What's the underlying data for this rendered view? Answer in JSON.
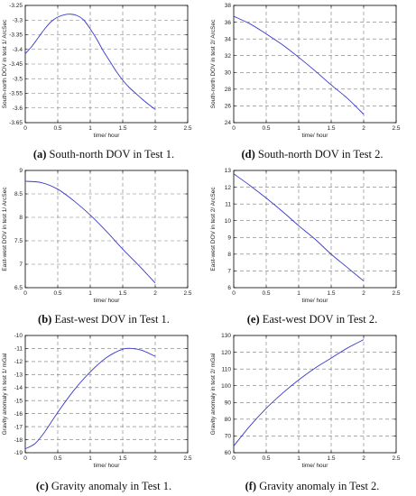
{
  "chart_data": [
    {
      "id": "a",
      "type": "line",
      "caption_tag": "(a)",
      "caption_text": " South-north DOV in Test 1.",
      "xlabel": "time/ hour",
      "ylabel": "South-north DOV in test 1/ ArcSec",
      "xlim": [
        0,
        2.5
      ],
      "ylim": [
        -3.65,
        -3.25
      ],
      "xticks": [
        0,
        0.5,
        1,
        1.5,
        2,
        2.5
      ],
      "xticklabels": [
        "0",
        "0.5",
        "1",
        "1.5",
        "2",
        "2.5"
      ],
      "yticks": [
        -3.65,
        -3.6,
        -3.55,
        -3.5,
        -3.45,
        -3.4,
        -3.35,
        -3.3,
        -3.25
      ],
      "yticklabels": [
        "-3.65",
        "-3.6",
        "-3.55",
        "-3.5",
        "-3.45",
        "-3.4",
        "-3.35",
        "-3.3",
        "-3.25"
      ],
      "grid": true,
      "color": "#3a3acc",
      "x": [
        0,
        0.1,
        0.2,
        0.3,
        0.4,
        0.5,
        0.6,
        0.7,
        0.8,
        0.9,
        1.0,
        1.1,
        1.2,
        1.3,
        1.4,
        1.5,
        1.6,
        1.7,
        1.8,
        1.9,
        2.0
      ],
      "y": [
        -3.415,
        -3.39,
        -3.36,
        -3.33,
        -3.305,
        -3.29,
        -3.282,
        -3.28,
        -3.285,
        -3.3,
        -3.33,
        -3.365,
        -3.405,
        -3.44,
        -3.475,
        -3.505,
        -3.53,
        -3.55,
        -3.57,
        -3.588,
        -3.605
      ]
    },
    {
      "id": "d",
      "type": "line",
      "caption_tag": "(d)",
      "caption_text": " South-north DOV in Test 2.",
      "xlabel": "time/ hour",
      "ylabel": "South-north DOV in test 2/ ArcSec",
      "xlim": [
        0,
        2.5
      ],
      "ylim": [
        24,
        38
      ],
      "xticks": [
        0,
        0.5,
        1,
        1.5,
        2,
        2.5
      ],
      "xticklabels": [
        "0",
        "0.5",
        "1",
        "1.5",
        "2",
        "2.5"
      ],
      "yticks": [
        24,
        26,
        28,
        30,
        32,
        34,
        36,
        38
      ],
      "yticklabels": [
        "24",
        "26",
        "28",
        "30",
        "32",
        "34",
        "36",
        "38"
      ],
      "grid": true,
      "color": "#3a3acc",
      "x": [
        0,
        0.25,
        0.5,
        0.75,
        1.0,
        1.25,
        1.5,
        1.75,
        2.0
      ],
      "y": [
        36.7,
        35.8,
        34.6,
        33.3,
        31.8,
        30.2,
        28.5,
        26.9,
        25.0
      ]
    },
    {
      "id": "b",
      "type": "line",
      "caption_tag": "(b)",
      "caption_text": " East-west DOV in Test 1.",
      "xlabel": "time/ hour",
      "ylabel": "East-west DOV in test 1/ ArcSec",
      "xlim": [
        0,
        2.5
      ],
      "ylim": [
        6.5,
        9
      ],
      "xticks": [
        0,
        0.5,
        1,
        1.5,
        2,
        2.5
      ],
      "xticklabels": [
        "0",
        "0.5",
        "1",
        "1.5",
        "2",
        "2.5"
      ],
      "yticks": [
        6.5,
        7,
        7.5,
        8,
        8.5,
        9
      ],
      "yticklabels": [
        "6.5",
        "7",
        "7.5",
        "8",
        "8.5",
        "9"
      ],
      "grid": true,
      "color": "#3a3acc",
      "x": [
        0,
        0.25,
        0.5,
        0.75,
        1.0,
        1.25,
        1.5,
        1.75,
        2.0
      ],
      "y": [
        8.77,
        8.74,
        8.6,
        8.35,
        8.05,
        7.7,
        7.32,
        6.97,
        6.6
      ]
    },
    {
      "id": "e",
      "type": "line",
      "caption_tag": "(e)",
      "caption_text": " East-west DOV in Test 2.",
      "xlabel": "time/ hour",
      "ylabel": "East-west DOV in test 2/ ArcSec",
      "xlim": [
        0,
        2.5
      ],
      "ylim": [
        6,
        13
      ],
      "xticks": [
        0,
        0.5,
        1,
        1.5,
        2,
        2.5
      ],
      "xticklabels": [
        "0",
        "0.5",
        "1",
        "1.5",
        "2",
        "2.5"
      ],
      "yticks": [
        6,
        7,
        8,
        9,
        10,
        11,
        12,
        13
      ],
      "yticklabels": [
        "6",
        "7",
        "8",
        "9",
        "10",
        "11",
        "12",
        "13"
      ],
      "grid": true,
      "color": "#3a3acc",
      "x": [
        0,
        0.25,
        0.5,
        0.75,
        1.0,
        1.25,
        1.5,
        1.75,
        2.0
      ],
      "y": [
        12.8,
        12.1,
        11.35,
        10.55,
        9.7,
        8.9,
        8.0,
        7.2,
        6.4
      ]
    },
    {
      "id": "c",
      "type": "line",
      "caption_tag": "(c)",
      "caption_text": " Gravity anomaly in Test 1.",
      "xlabel": "time/ hour",
      "ylabel": "Gravity anomaly in test 1/ mGal",
      "xlim": [
        0,
        2.5
      ],
      "ylim": [
        -19,
        -10
      ],
      "xticks": [
        0,
        0.5,
        1,
        1.5,
        2,
        2.5
      ],
      "xticklabels": [
        "0",
        "0.5",
        "1",
        "1.5",
        "2",
        "2.5"
      ],
      "yticks": [
        -19,
        -18,
        -17,
        -16,
        -15,
        -14,
        -13,
        -12,
        -11,
        -10
      ],
      "yticklabels": [
        "-19",
        "-18",
        "-17",
        "-16",
        "-15",
        "-14",
        "-13",
        "-12",
        "-11",
        "-10"
      ],
      "grid": true,
      "color": "#3a3acc",
      "x": [
        0,
        0.15,
        0.3,
        0.5,
        0.75,
        1.0,
        1.25,
        1.5,
        1.65,
        1.8,
        2.0
      ],
      "y": [
        -18.7,
        -18.3,
        -17.4,
        -15.9,
        -14.2,
        -12.8,
        -11.7,
        -11.05,
        -11.0,
        -11.15,
        -11.6
      ]
    },
    {
      "id": "f",
      "type": "line",
      "caption_tag": "(f)",
      "caption_text": " Gravity anomaly in Test 2.",
      "xlabel": "time/ hour",
      "ylabel": "Gravity anomaly in test 2/ mGal",
      "xlim": [
        0,
        2.5
      ],
      "ylim": [
        60,
        130
      ],
      "xticks": [
        0,
        0.5,
        1,
        1.5,
        2,
        2.5
      ],
      "xticklabels": [
        "0",
        "0.5",
        "1",
        "1.5",
        "2",
        "2.5"
      ],
      "yticks": [
        60,
        70,
        80,
        90,
        100,
        110,
        120,
        130
      ],
      "yticklabels": [
        "60",
        "70",
        "80",
        "90",
        "100",
        "110",
        "120",
        "130"
      ],
      "grid": true,
      "color": "#3a3acc",
      "x": [
        0,
        0.25,
        0.5,
        0.75,
        1.0,
        1.25,
        1.5,
        1.75,
        2.0
      ],
      "y": [
        64,
        76,
        86.5,
        95.5,
        103.5,
        110.5,
        116.5,
        122.5,
        127.5
      ]
    }
  ]
}
